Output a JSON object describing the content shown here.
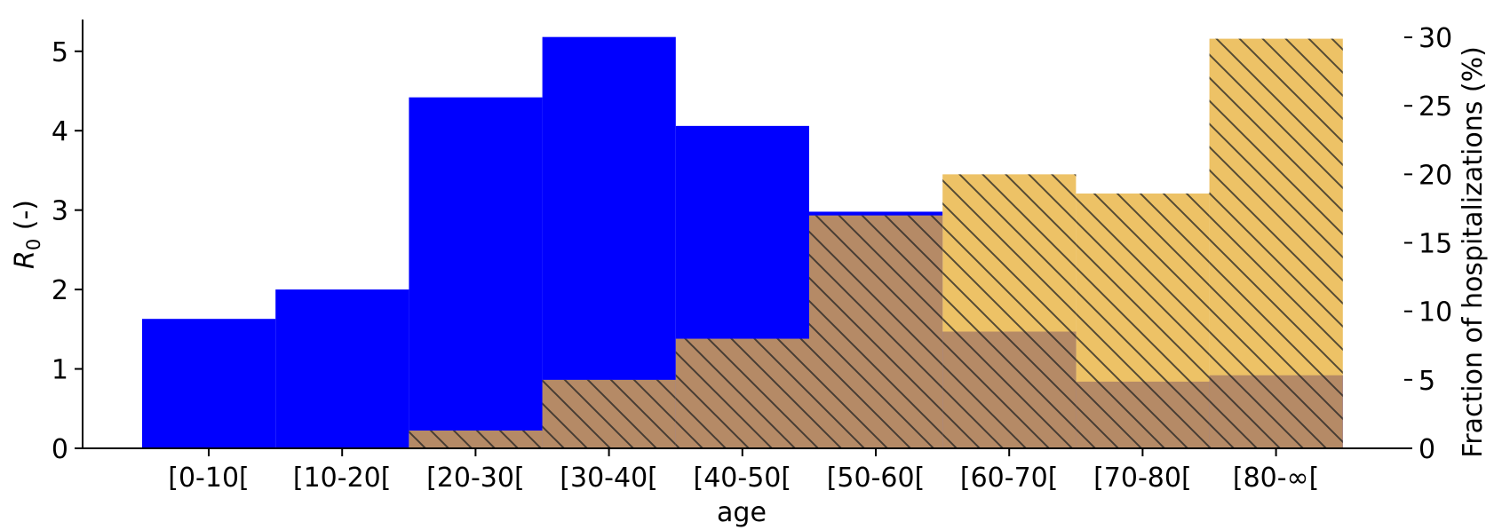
{
  "chart_data": {
    "type": "bar",
    "categories": [
      "[0-10[",
      "[10-20[",
      "[20-30[",
      "[30-40[",
      "[40-50[",
      "[50-60[",
      "[60-70[",
      "[70-80[",
      "[80-∞["
    ],
    "xlabel": "age",
    "ylabel_left": {
      "symbol": "R",
      "subscript": "0",
      "unit": " (-)"
    },
    "ylabel_right": "Fraction of hospitalizations (%)",
    "ylim_left": [
      0,
      5.4
    ],
    "ylim_right": [
      0,
      31.3
    ],
    "yticks_left": [
      0,
      1,
      2,
      3,
      4,
      5
    ],
    "yticks_right": [
      0,
      5,
      10,
      15,
      20,
      25,
      30
    ],
    "grid": false,
    "series": [
      {
        "axis": "left",
        "color": "#0000ff",
        "values": [
          1.63,
          2.0,
          4.42,
          5.18,
          4.06,
          2.98,
          1.47,
          0.84,
          0.92
        ]
      },
      {
        "axis": "right",
        "color": "#e8b13b",
        "hatch": true,
        "values": [
          0.0,
          0.0,
          1.3,
          5.0,
          8.0,
          17.0,
          20.0,
          18.6,
          29.9
        ]
      }
    ]
  }
}
